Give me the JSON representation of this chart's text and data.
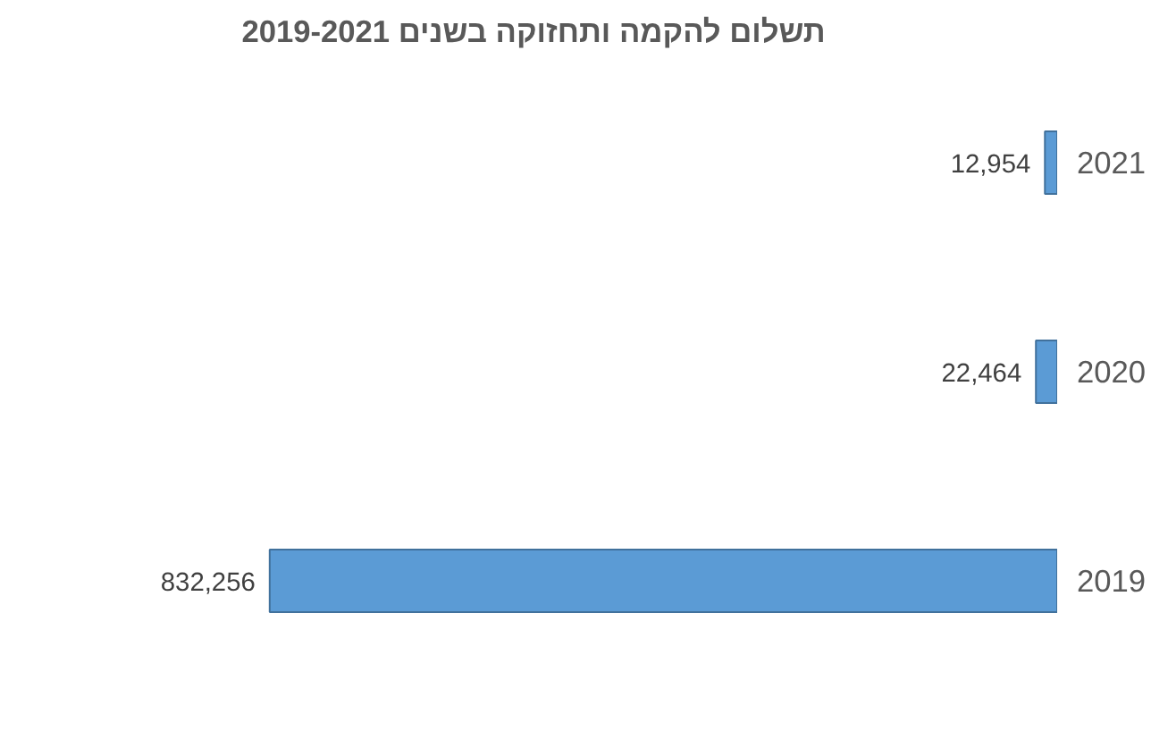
{
  "chart_data": {
    "type": "bar",
    "orientation": "horizontal",
    "title": "תשלום להקמה ותחזוקה בשנים 2019-2021",
    "categories": [
      "2021",
      "2020",
      "2019"
    ],
    "values": [
      12954,
      22464,
      832256
    ],
    "value_labels": [
      "12,954",
      "22,464",
      "832,256"
    ],
    "color": "#5b9bd5",
    "grid": false
  }
}
